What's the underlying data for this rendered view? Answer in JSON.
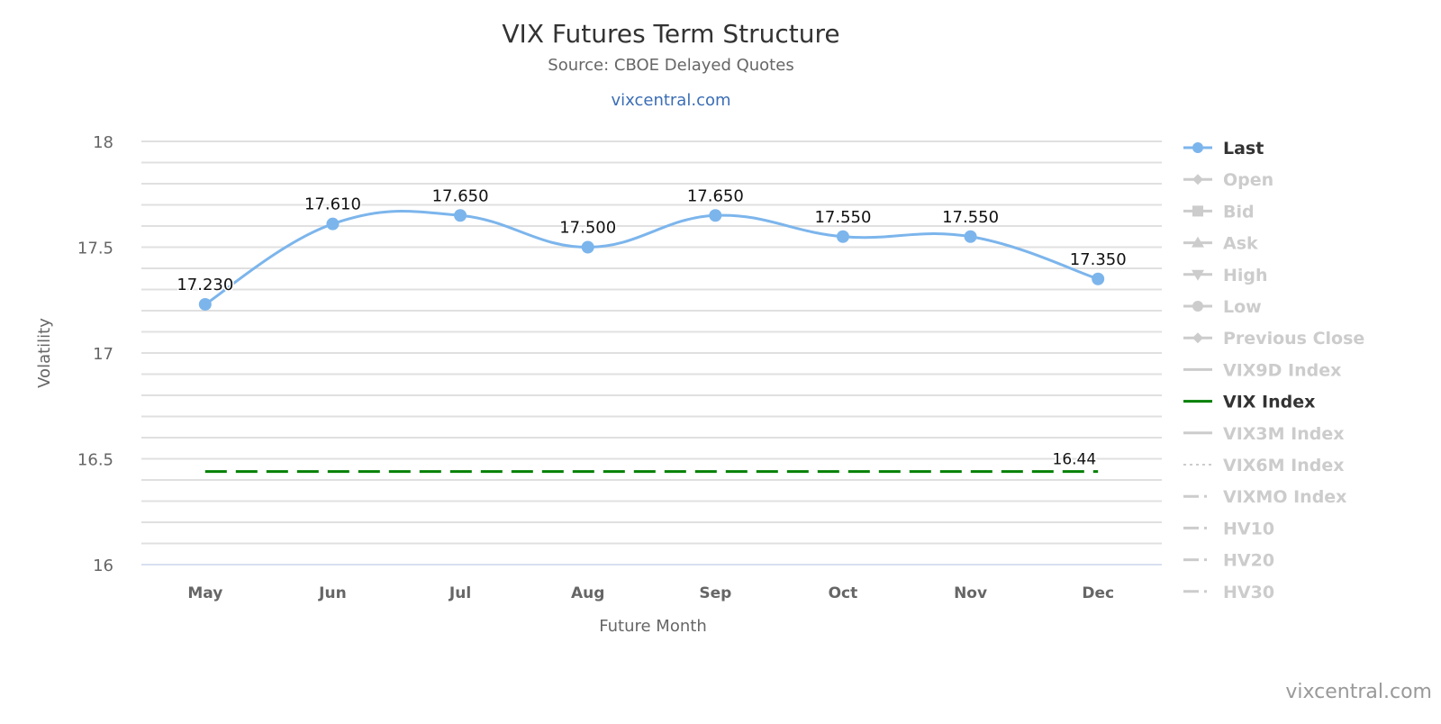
{
  "chart_data": {
    "type": "line",
    "title": "VIX Futures Term Structure",
    "subtitle": "Source: CBOE Delayed Quotes",
    "link": "vixcentral.com",
    "credits": "vixcentral.com",
    "xlabel": "Future Month",
    "ylabel": "Volatility",
    "ylim": [
      16,
      18
    ],
    "yticks": [
      "16",
      "16.5",
      "17",
      "17.5",
      "18"
    ],
    "categories": [
      "May",
      "Jun",
      "Jul",
      "Aug",
      "Sep",
      "Oct",
      "Nov",
      "Dec"
    ],
    "series": [
      {
        "name": "Last",
        "values": [
          17.23,
          17.61,
          17.65,
          17.5,
          17.65,
          17.55,
          17.55,
          17.35
        ],
        "labels": [
          "17.230",
          "17.610",
          "17.650",
          "17.500",
          "17.650",
          "17.550",
          "17.550",
          "17.350"
        ],
        "color": "#7cb5ec"
      },
      {
        "name": "VIX Index",
        "value": 16.44,
        "label": "16.44",
        "color": "#008000"
      }
    ],
    "legend_position": "right",
    "legend": [
      {
        "name": "Last",
        "symbol": "circle-line",
        "active": true
      },
      {
        "name": "Open",
        "symbol": "diamond-line",
        "active": false
      },
      {
        "name": "Bid",
        "symbol": "square-line",
        "active": false
      },
      {
        "name": "Ask",
        "symbol": "triangle-line",
        "active": false
      },
      {
        "name": "High",
        "symbol": "triangle-down-line",
        "active": false
      },
      {
        "name": "Low",
        "symbol": "circle-line",
        "active": false
      },
      {
        "name": "Previous Close",
        "symbol": "diamond-line",
        "active": false
      },
      {
        "name": "VIX9D Index",
        "symbol": "line",
        "active": false
      },
      {
        "name": "VIX Index",
        "symbol": "line",
        "active": true,
        "color": "#008000"
      },
      {
        "name": "VIX3M Index",
        "symbol": "line",
        "active": false
      },
      {
        "name": "VIX6M Index",
        "symbol": "dotted",
        "active": false
      },
      {
        "name": "VIXMO Index",
        "symbol": "dashdot",
        "active": false
      },
      {
        "name": "HV10",
        "symbol": "dashdot",
        "active": false
      },
      {
        "name": "HV20",
        "symbol": "dashdot",
        "active": false
      },
      {
        "name": "HV30",
        "symbol": "dashdot",
        "active": false
      }
    ]
  }
}
